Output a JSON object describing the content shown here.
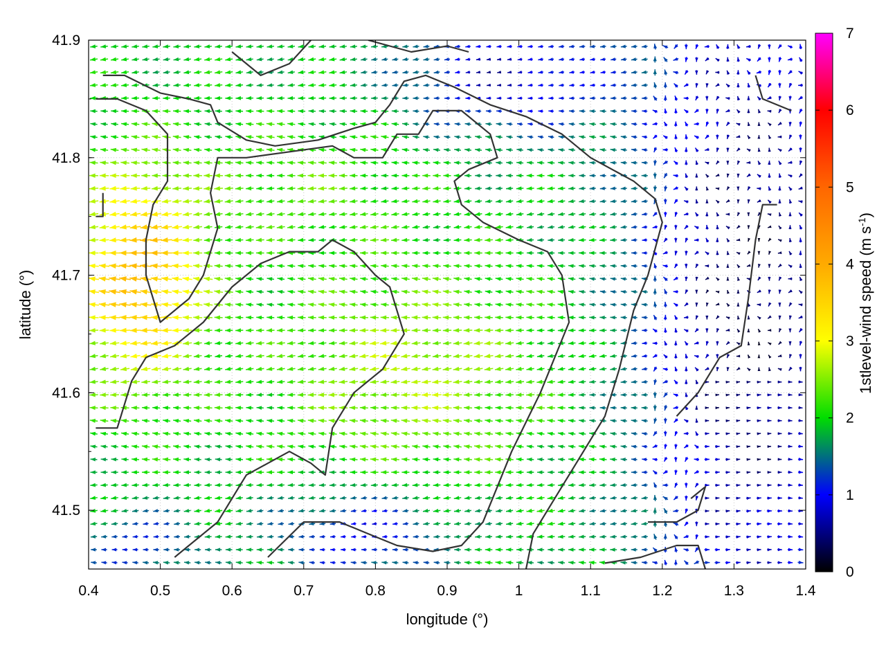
{
  "chart_data": {
    "type": "vector field",
    "xlabel": "longitude (°)",
    "ylabel": "latitude (°)",
    "xlim": [
      0.4,
      1.4
    ],
    "ylim": [
      41.45,
      41.9
    ],
    "x_ticks": [
      "0.4",
      "0.5",
      "0.6",
      "0.7",
      "0.8",
      "0.9",
      "1",
      "1.1",
      "1.2",
      "1.3",
      "1.4"
    ],
    "y_ticks": [
      "41.5",
      "41.6",
      "41.7",
      "41.8",
      "41.9"
    ],
    "grid": true,
    "colorbar": {
      "label": "1stlevel-wind speed (m s",
      "label_sup": "-1",
      "label_end": ")",
      "range": [
        0,
        7
      ],
      "ticks": [
        "0",
        "1",
        "2",
        "3",
        "4",
        "5",
        "6",
        "7"
      ]
    },
    "wind_speed_regions": [
      {
        "lon": [
          0.4,
          0.62
        ],
        "lat": [
          41.6,
          41.8
        ],
        "speed_ms": "3.5-4.5"
      },
      {
        "lon": [
          0.62,
          1.05
        ],
        "lat": [
          41.55,
          41.75
        ],
        "speed_ms": "2.5-3.2"
      },
      {
        "lon": [
          0.4,
          1.0
        ],
        "lat": [
          41.75,
          41.88
        ],
        "speed_ms": "1.8-2.5"
      },
      {
        "lon": [
          1.15,
          1.4
        ],
        "lat": [
          41.45,
          41.9
        ],
        "speed_ms": "0.2-1.5"
      }
    ],
    "predominant_direction": "from east toward west (westward-pointing arrows) over most of the domain; weak eastward flow in the south-east corner"
  }
}
